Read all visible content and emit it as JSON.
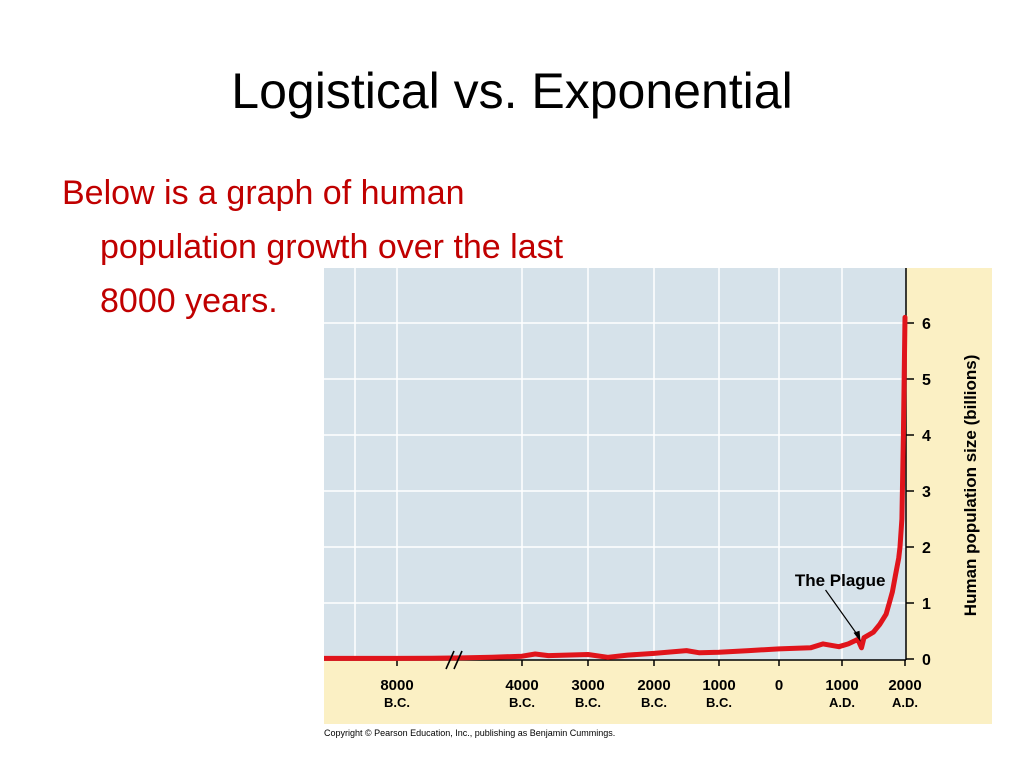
{
  "slide": {
    "title": "Logistical vs. Exponential",
    "bullet_lines": [
      "Below is a graph of human",
      "population growth over the last",
      "8000 years."
    ],
    "copyright": "Copyright © Pearson Education, Inc., publishing as Benjamin Cummings."
  },
  "colors": {
    "title": "#000000",
    "bullet_text": "#c00000",
    "plot_background": "#d6e2ea",
    "axis_band": "#fbf0c4",
    "curve": "#e0141b",
    "grid": "#ffffff"
  },
  "chart_data": {
    "type": "line",
    "title": "",
    "xlabel": "",
    "ylabel": "Human population size (billions)",
    "y_axis_side": "right",
    "ylim": [
      0,
      6
    ],
    "y_ticks": [
      "0",
      "1",
      "2",
      "3",
      "4",
      "5",
      "6"
    ],
    "x_ticks": [
      {
        "year": -8000,
        "line1": "8000",
        "line2": "B.C."
      },
      {
        "year": -4000,
        "line1": "4000",
        "line2": "B.C."
      },
      {
        "year": -3000,
        "line1": "3000",
        "line2": "B.C."
      },
      {
        "year": -2000,
        "line1": "2000",
        "line2": "B.C."
      },
      {
        "year": -1000,
        "line1": "1000",
        "line2": "B.C."
      },
      {
        "year": 0,
        "line1": "0",
        "line2": ""
      },
      {
        "year": 1000,
        "line1": "1000",
        "line2": "A.D."
      },
      {
        "year": 2000,
        "line1": "2000",
        "line2": "A.D."
      }
    ],
    "axis_break": "between 8000 B.C. and 4000 B.C.",
    "grid": true,
    "series": [
      {
        "values_billions": [
          [
            -9000,
            0.01
          ],
          [
            -8000,
            0.01
          ],
          [
            -7000,
            0.015
          ],
          [
            -6000,
            0.02
          ],
          [
            -5000,
            0.03
          ],
          [
            -4000,
            0.05
          ],
          [
            -3800,
            0.09
          ],
          [
            -3600,
            0.06
          ],
          [
            -3000,
            0.08
          ],
          [
            -2700,
            0.03
          ],
          [
            -2400,
            0.07
          ],
          [
            -2000,
            0.1
          ],
          [
            -1500,
            0.15
          ],
          [
            -1300,
            0.11
          ],
          [
            -1000,
            0.12
          ],
          [
            -500,
            0.15
          ],
          [
            0,
            0.18
          ],
          [
            500,
            0.2
          ],
          [
            700,
            0.27
          ],
          [
            950,
            0.22
          ],
          [
            1100,
            0.27
          ],
          [
            1250,
            0.35
          ],
          [
            1310,
            0.2
          ],
          [
            1350,
            0.38
          ],
          [
            1500,
            0.48
          ],
          [
            1600,
            0.62
          ],
          [
            1700,
            0.8
          ],
          [
            1750,
            1.0
          ],
          [
            1800,
            1.2
          ],
          [
            1850,
            1.5
          ],
          [
            1900,
            1.8
          ],
          [
            1920,
            2.0
          ],
          [
            1950,
            2.5
          ],
          [
            1975,
            4.0
          ],
          [
            2000,
            6.1
          ]
        ]
      }
    ],
    "annotations": [
      {
        "text": "The Plague",
        "year": 1310,
        "value": 0.2
      }
    ]
  }
}
